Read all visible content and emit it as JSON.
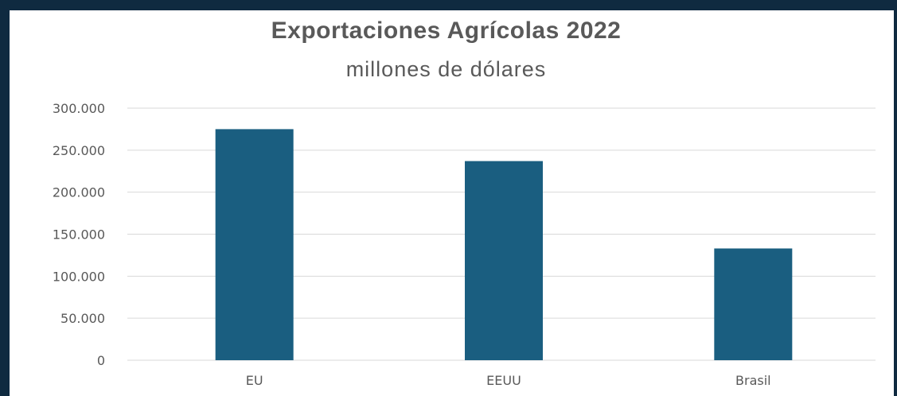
{
  "chart_data": {
    "type": "bar",
    "title": "Exportaciones Agrícolas 2022",
    "subtitle": "millones de dólares",
    "categories": [
      "EU",
      "EEUU",
      "Brasil"
    ],
    "values": [
      275000,
      237000,
      133000
    ],
    "ylim": [
      0,
      300000
    ],
    "yticks": [
      "0",
      "50.000",
      "100.000",
      "150.000",
      "200.000",
      "250.000",
      "300.000"
    ],
    "ytick_values": [
      0,
      50000,
      100000,
      150000,
      200000,
      250000,
      300000
    ],
    "grid": true,
    "bar_color": "#1a5e80",
    "grid_color": "#d9d9d9"
  }
}
